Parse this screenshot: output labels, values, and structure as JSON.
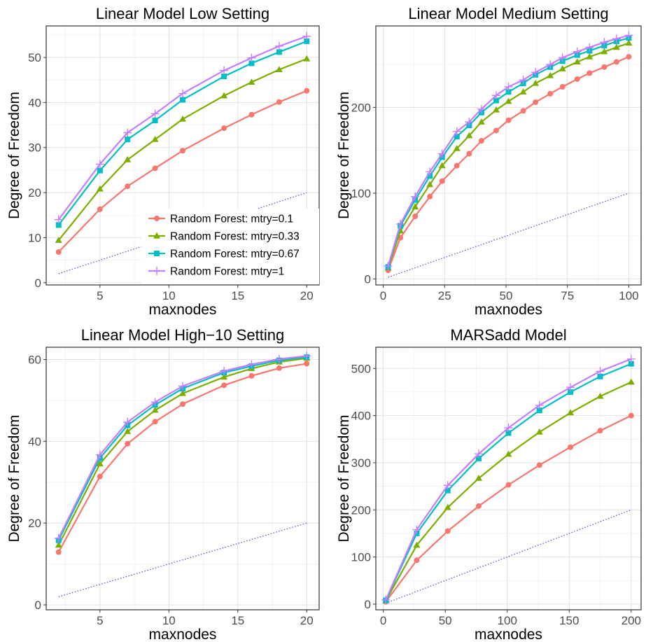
{
  "series_colors": [
    "#F8766D",
    "#7CAE00",
    "#00BFC4",
    "#C77CFF"
  ],
  "reference_line_color": "#4B4BC8",
  "chart_data": [
    {
      "type": "line",
      "title": "Linear Model Low Setting",
      "xlabel": "maxnodes",
      "ylabel": "Degree of Freedom",
      "xlim": [
        1.1,
        20.9
      ],
      "ylim": [
        -0.5,
        57
      ],
      "xticks": [
        5,
        10,
        15,
        20
      ],
      "yticks": [
        0,
        10,
        20,
        30,
        40,
        50
      ],
      "grid": true,
      "legend": "bottom-right",
      "x": [
        2,
        5,
        7,
        9,
        11,
        14,
        16,
        18,
        20
      ],
      "series": [
        {
          "name": "Random Forest: mtry=0.1",
          "marker": "circle",
          "values": [
            6.8,
            16.3,
            21.4,
            25.4,
            29.3,
            34.3,
            37.3,
            40.1,
            42.6
          ]
        },
        {
          "name": "Random Forest: mtry=0.33",
          "marker": "triangle",
          "values": [
            9.4,
            20.8,
            27.3,
            31.8,
            36.3,
            41.5,
            44.5,
            47.3,
            49.7
          ]
        },
        {
          "name": "Random Forest: mtry=0.67",
          "marker": "square",
          "values": [
            12.8,
            24.9,
            31.8,
            36.0,
            40.6,
            45.8,
            48.7,
            51.2,
            53.6
          ]
        },
        {
          "name": "Random Forest: mtry=1",
          "marker": "plus",
          "values": [
            14.0,
            26.3,
            33.3,
            37.5,
            42.0,
            47.1,
            49.9,
            52.5,
            54.7
          ]
        }
      ],
      "reference": {
        "x": [
          2,
          20
        ],
        "y": [
          2,
          20
        ]
      }
    },
    {
      "type": "line",
      "title": "Linear Model Medium Setting",
      "xlabel": "maxnodes",
      "ylabel": "Degree of Freedom",
      "xlim": [
        -3,
        105
      ],
      "ylim": [
        -7,
        295
      ],
      "xticks": [
        0,
        25,
        50,
        75,
        100
      ],
      "yticks": [
        0,
        100,
        200
      ],
      "grid": true,
      "legend": "none",
      "x": [
        2,
        7,
        13,
        19,
        24,
        30,
        35,
        40,
        46,
        51,
        57,
        62,
        68,
        73,
        79,
        84,
        90,
        95,
        100
      ],
      "series": [
        {
          "name": "Random Forest: mtry=0.1",
          "marker": "circle",
          "values": [
            10,
            48,
            73,
            96,
            114,
            132,
            146,
            161,
            173,
            185,
            196,
            206,
            216,
            224,
            233,
            240,
            247,
            253,
            259
          ]
        },
        {
          "name": "Random Forest: mtry=0.33",
          "marker": "triangle",
          "values": [
            13,
            56,
            84,
            110,
            132,
            152,
            167,
            183,
            197,
            207,
            218,
            228,
            237,
            245,
            253,
            259,
            265,
            270,
            275
          ]
        },
        {
          "name": "Random Forest: mtry=0.67",
          "marker": "square",
          "values": [
            14,
            62,
            92,
            120,
            142,
            166,
            179,
            194,
            208,
            218,
            228,
            238,
            247,
            254,
            261,
            266,
            272,
            277,
            281
          ]
        },
        {
          "name": "Random Forest: mtry=1",
          "marker": "plus",
          "values": [
            15,
            64,
            96,
            125,
            146,
            172,
            183,
            198,
            214,
            224,
            232,
            241,
            250,
            258,
            265,
            270,
            276,
            280,
            284
          ]
        }
      ],
      "reference": {
        "x": [
          2,
          100
        ],
        "y": [
          2,
          100
        ]
      }
    },
    {
      "type": "line",
      "title": "Linear Model High−10 Setting",
      "xlabel": "maxnodes",
      "ylabel": "Degree of Freedom",
      "xlim": [
        1.1,
        20.9
      ],
      "ylim": [
        -1.2,
        63
      ],
      "xticks": [
        5,
        10,
        15,
        20
      ],
      "yticks": [
        0,
        20,
        40,
        60
      ],
      "grid": true,
      "legend": "none",
      "x": [
        2,
        5,
        7,
        9,
        11,
        14,
        16,
        18,
        20
      ],
      "series": [
        {
          "name": "Random Forest: mtry=0.1",
          "marker": "circle",
          "values": [
            12.9,
            31.4,
            39.4,
            44.8,
            49.1,
            53.7,
            56.0,
            57.9,
            59.0
          ]
        },
        {
          "name": "Random Forest: mtry=0.33",
          "marker": "triangle",
          "values": [
            14.6,
            34.5,
            42.4,
            47.6,
            51.7,
            55.7,
            57.8,
            59.4,
            60.3
          ]
        },
        {
          "name": "Random Forest: mtry=0.67",
          "marker": "square",
          "values": [
            15.8,
            35.9,
            43.9,
            48.9,
            52.9,
            56.8,
            58.4,
            59.8,
            60.6
          ]
        },
        {
          "name": "Random Forest: mtry=1",
          "marker": "plus",
          "values": [
            16.3,
            36.7,
            44.7,
            49.6,
            53.5,
            57.2,
            58.8,
            60.1,
            60.9
          ]
        }
      ],
      "reference": {
        "x": [
          2,
          20
        ],
        "y": [
          2,
          20
        ]
      }
    },
    {
      "type": "line",
      "title": "MARSadd Model",
      "xlabel": "maxnodes",
      "ylabel": "Degree of Freedom",
      "xlim": [
        -6,
        208
      ],
      "ylim": [
        -12,
        545
      ],
      "xticks": [
        0,
        50,
        100,
        150,
        200
      ],
      "yticks": [
        0,
        100,
        200,
        300,
        400,
        500
      ],
      "grid": true,
      "legend": "none",
      "x": [
        2,
        27,
        52,
        77,
        101,
        126,
        151,
        175,
        200
      ],
      "series": [
        {
          "name": "Random Forest: mtry=0.1",
          "marker": "circle",
          "values": [
            5,
            93,
            155,
            208,
            253,
            295,
            333,
            368,
            400
          ]
        },
        {
          "name": "Random Forest: mtry=0.33",
          "marker": "triangle",
          "values": [
            7,
            125,
            205,
            267,
            318,
            365,
            406,
            441,
            471
          ]
        },
        {
          "name": "Random Forest: mtry=0.67",
          "marker": "square",
          "values": [
            8,
            150,
            241,
            309,
            363,
            411,
            450,
            483,
            510
          ]
        },
        {
          "name": "Random Forest: mtry=1",
          "marker": "plus",
          "values": [
            9,
            158,
            252,
            319,
            374,
            422,
            460,
            494,
            520
          ]
        }
      ],
      "reference": {
        "x": [
          2,
          200
        ],
        "y": [
          2,
          200
        ]
      }
    }
  ]
}
